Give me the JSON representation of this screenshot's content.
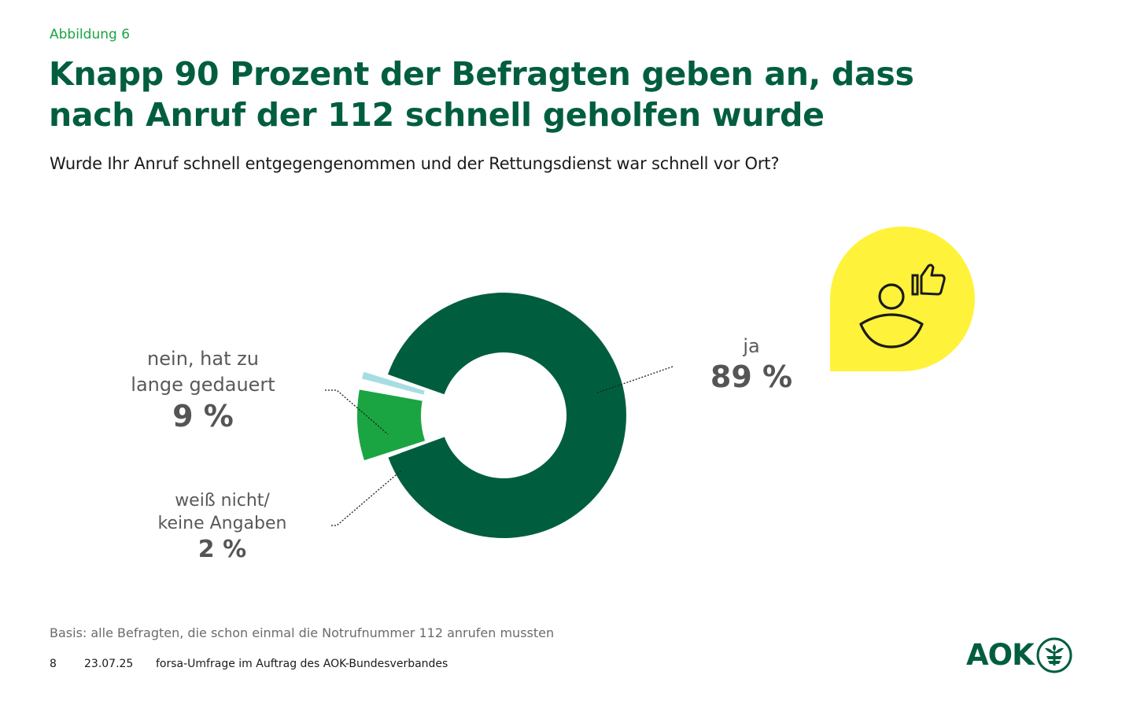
{
  "figure_label": "Abbildung 6",
  "title_line1": "Knapp 90 Prozent der Befragten geben an, dass",
  "title_line2": "nach Anruf der 112 schnell geholfen wurde",
  "subtitle": "Wurde Ihr Anruf schnell entgegengenommen und der Rettungsdienst war schnell vor Ort?",
  "labels": {
    "nein_line1": "nein, hat zu",
    "nein_line2": "lange gedauert",
    "nein_pct": "9 %",
    "weiss_line1": "weiß nicht/",
    "weiss_line2": "keine Angaben",
    "weiss_pct": "2 %",
    "ja_line1": "ja",
    "ja_pct": "89 %"
  },
  "basis": "Basis: alle Befragten, die schon einmal die Notrufnummer 112 anrufen mussten",
  "footer": {
    "page": "8",
    "date": "23.07.25",
    "source": "forsa-Umfrage im Auftrag des AOK-Bundesverbandes"
  },
  "logo_text": "AOK",
  "icons": [
    "person-thumbs-up-icon",
    "aok-tree-icon"
  ],
  "colors": {
    "ja": "#005e3f",
    "nein": "#1aa542",
    "weiss": "#a6dde3",
    "bubble": "#fff23a",
    "title": "#005e3f"
  },
  "chart_data": {
    "type": "pie",
    "variant": "donut",
    "categories": [
      "ja",
      "nein, hat zu lange gedauert",
      "weiß nicht/keine Angaben"
    ],
    "values": [
      89,
      9,
      2
    ],
    "unit": "%",
    "title": "Wurde Ihr Anruf schnell entgegengenommen und der Rettungsdienst war schnell vor Ort?"
  }
}
